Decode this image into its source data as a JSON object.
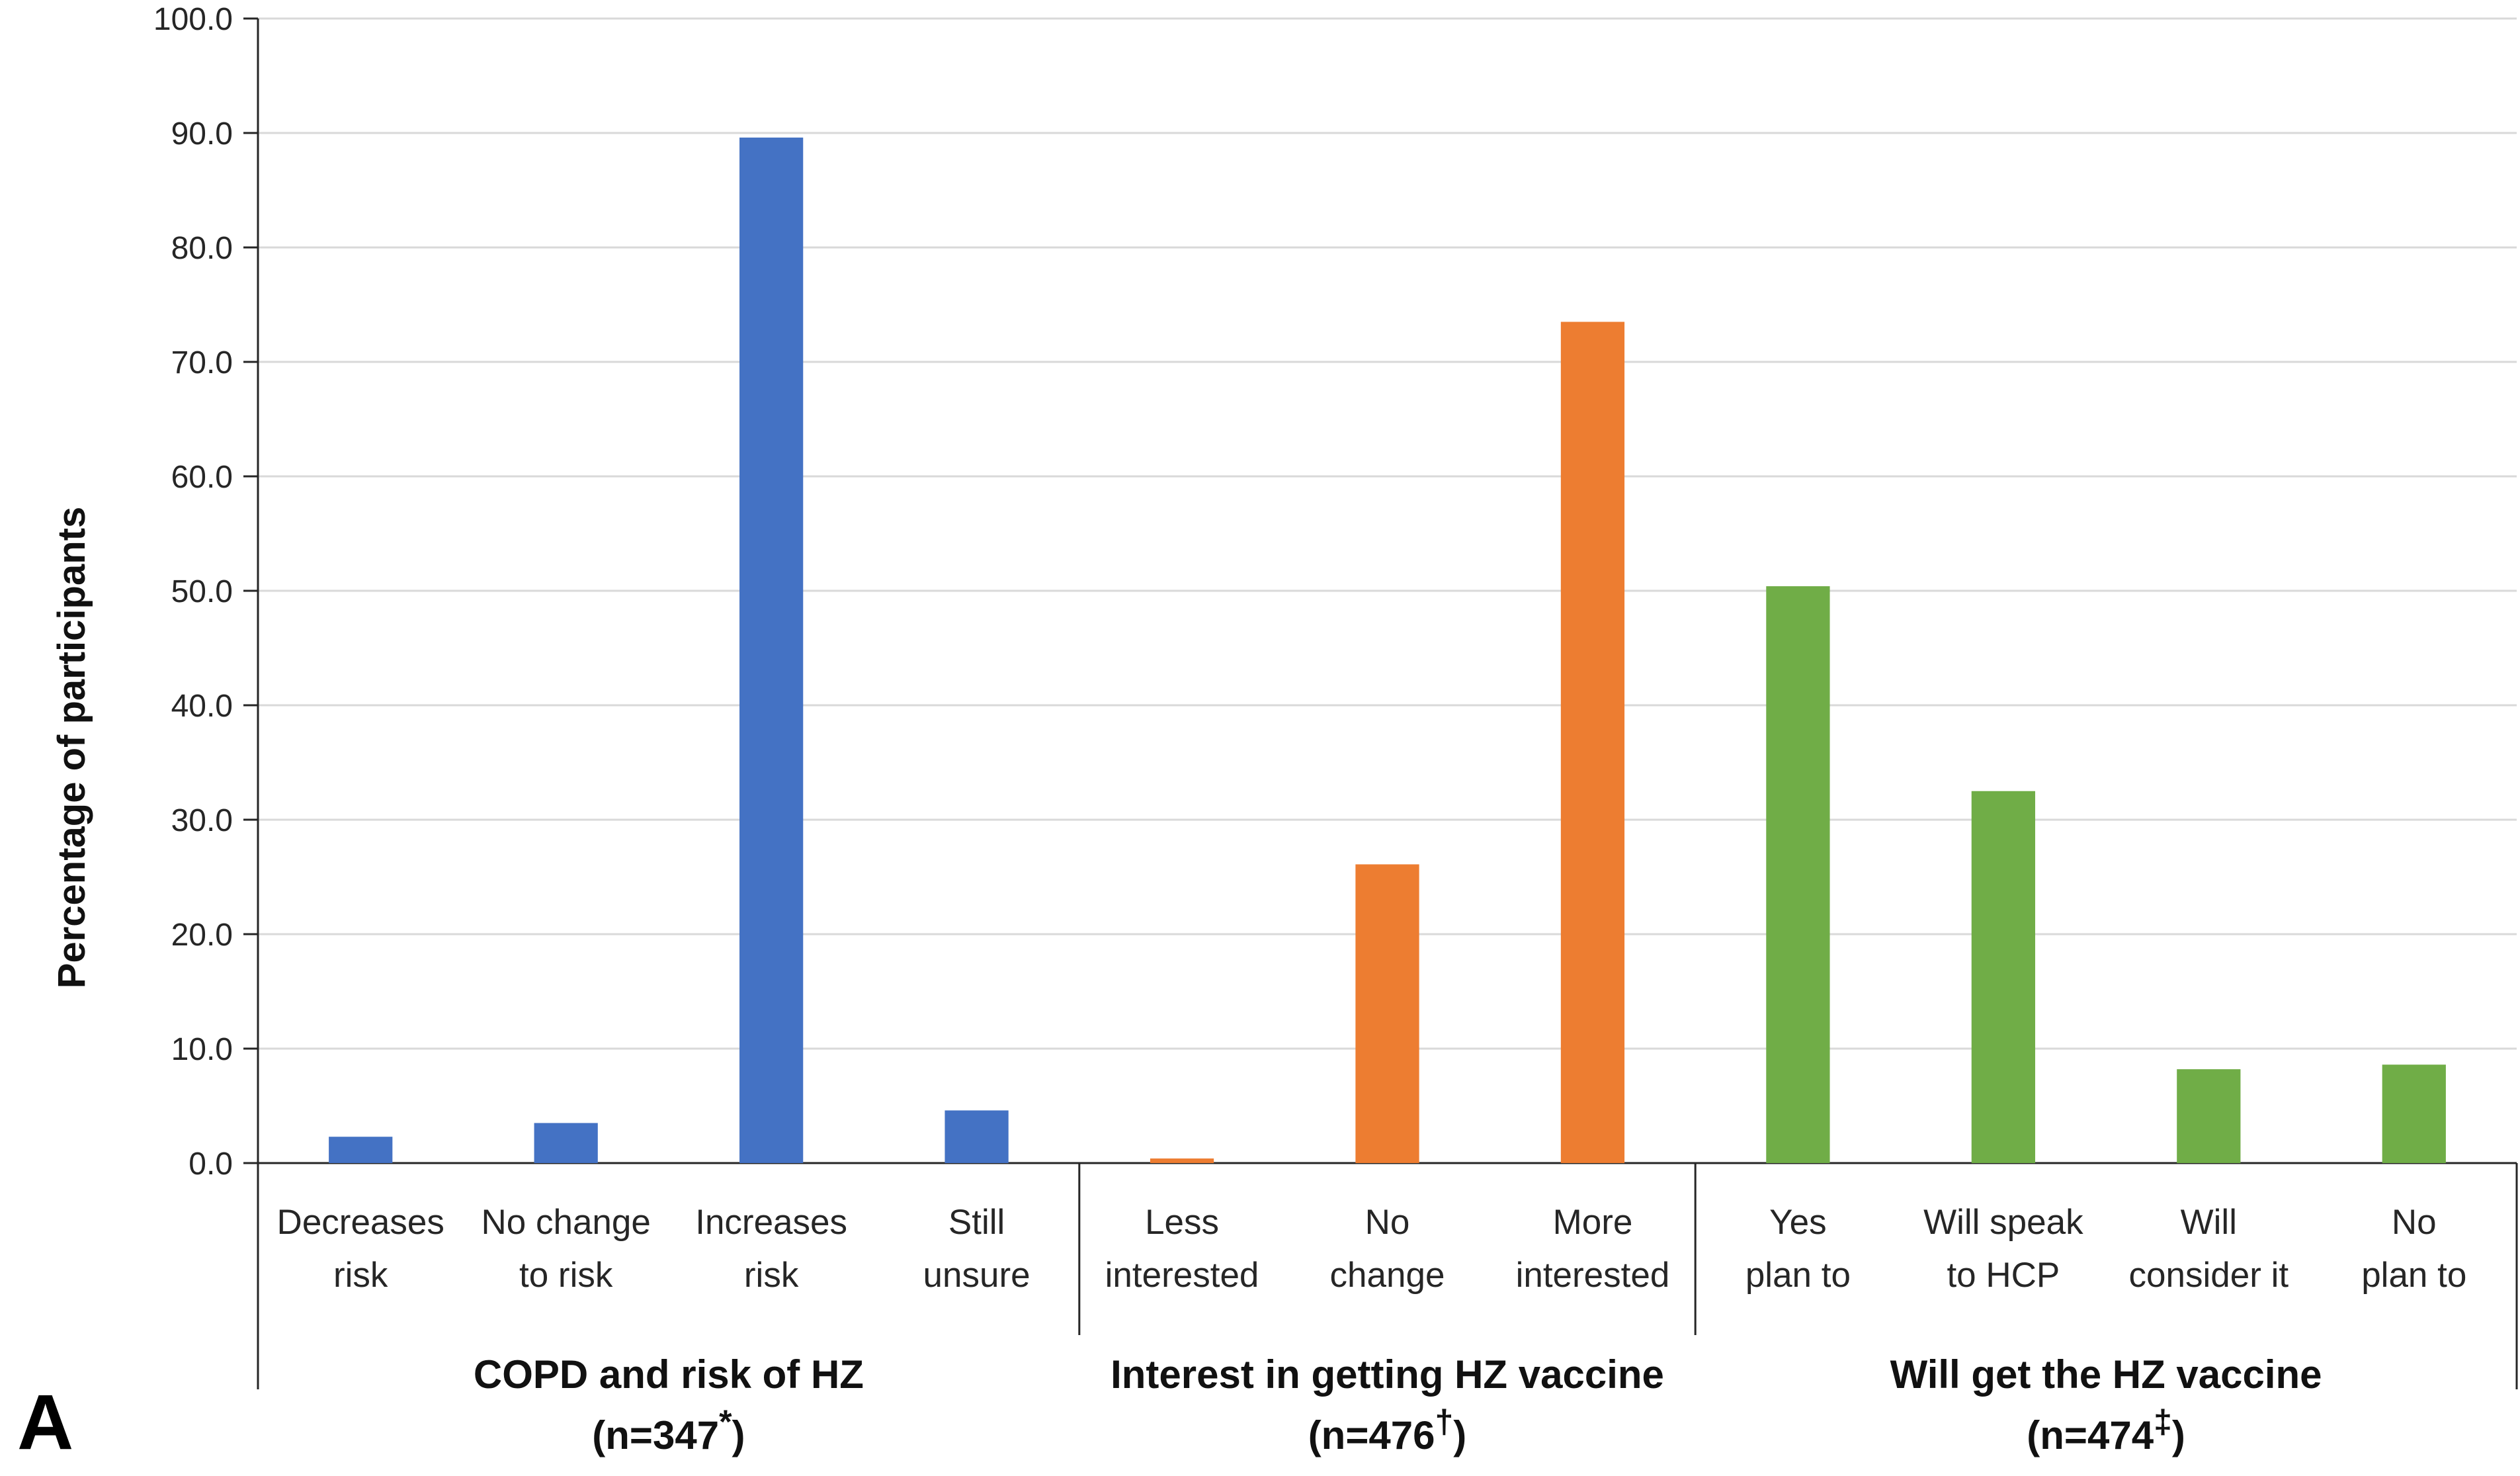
{
  "chart_data": {
    "type": "bar",
    "panel_label": "A",
    "ylabel": "Percentage of participants",
    "ylim": [
      0,
      100
    ],
    "yticks": [
      "0.0",
      "10.0",
      "20.0",
      "30.0",
      "40.0",
      "50.0",
      "60.0",
      "70.0",
      "80.0",
      "90.0",
      "100.0"
    ],
    "grid": true,
    "legend": "none",
    "groups": [
      {
        "name": "COPD and risk of HZ",
        "n_label": "(n=347",
        "n_mark": "*",
        "color": "#4472C4",
        "categories": [
          {
            "lines": [
              "Decreases",
              "risk"
            ],
            "value": 2.3
          },
          {
            "lines": [
              "No change",
              "to risk"
            ],
            "value": 3.5
          },
          {
            "lines": [
              "Increases",
              "risk"
            ],
            "value": 89.6
          },
          {
            "lines": [
              "Still",
              "unsure"
            ],
            "value": 4.6
          }
        ]
      },
      {
        "name": "Interest in getting HZ vaccine",
        "n_label": "(n=476",
        "n_mark": "†",
        "color": "#ED7D31",
        "categories": [
          {
            "lines": [
              "Less",
              "interested"
            ],
            "value": 0.4
          },
          {
            "lines": [
              "No",
              "change"
            ],
            "value": 26.1
          },
          {
            "lines": [
              "More",
              "interested"
            ],
            "value": 73.5
          }
        ]
      },
      {
        "name": "Will get the HZ vaccine",
        "n_label": "(n=474",
        "n_mark": "‡",
        "color": "#70AD47",
        "categories": [
          {
            "lines": [
              "Yes",
              "plan to"
            ],
            "value": 50.4
          },
          {
            "lines": [
              "Will speak",
              "to HCP"
            ],
            "value": 32.5
          },
          {
            "lines": [
              "Will",
              "consider it"
            ],
            "value": 8.2
          },
          {
            "lines": [
              "No",
              "plan to"
            ],
            "value": 8.6
          }
        ]
      }
    ]
  }
}
